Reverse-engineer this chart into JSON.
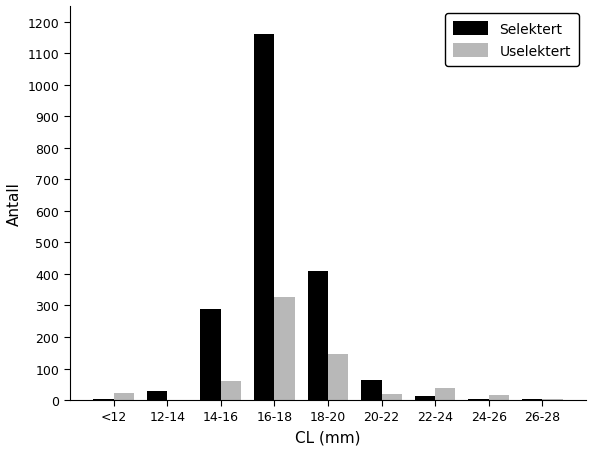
{
  "categories": [
    "<12",
    "12-14",
    "14-16",
    "16-18",
    "18-20",
    "20-22",
    "22-24",
    "24-26",
    "26-28"
  ],
  "selektert": [
    5,
    28,
    290,
    1160,
    410,
    65,
    12,
    3,
    5
  ],
  "uselektert": [
    22,
    0,
    60,
    328,
    145,
    20,
    38,
    15,
    5
  ],
  "selektert_color": "#000000",
  "uselektert_color": "#b8b8b8",
  "xlabel": "CL (mm)",
  "ylabel": "Antall",
  "ylim": [
    0,
    1250
  ],
  "yticks": [
    0,
    100,
    200,
    300,
    400,
    500,
    600,
    700,
    800,
    900,
    1000,
    1100,
    1200
  ],
  "legend_labels": [
    "Selektert",
    "Uselektert"
  ],
  "bar_width": 0.38,
  "background_color": "#ffffff",
  "font_family": "Arial",
  "tick_fontsize": 9,
  "label_fontsize": 11
}
